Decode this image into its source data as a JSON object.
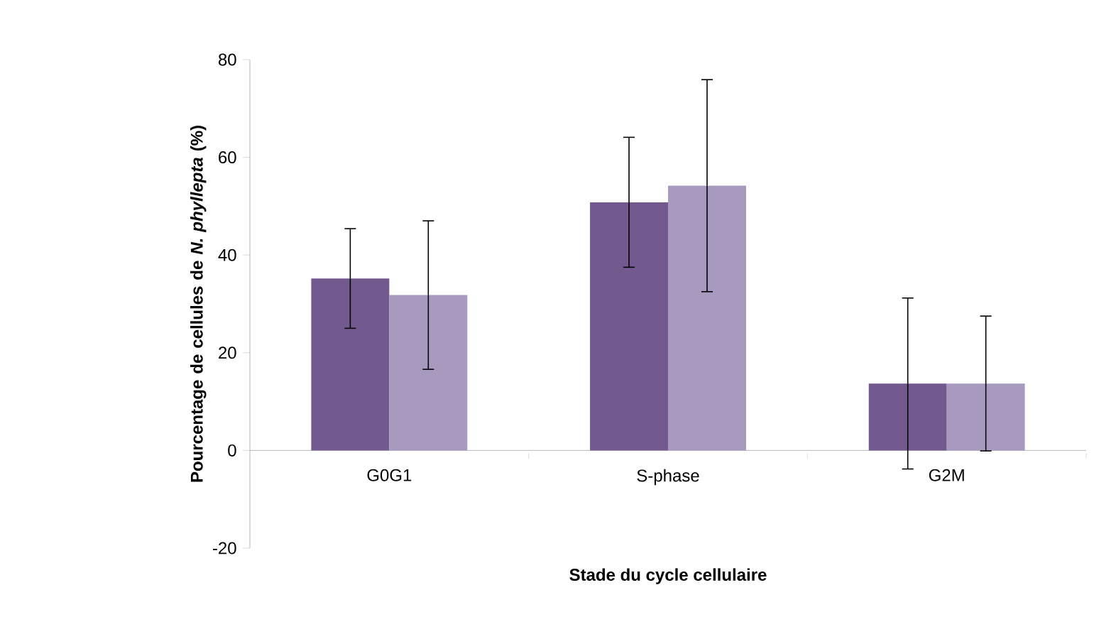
{
  "chart_data": {
    "type": "bar",
    "xlabel": "Stade du cycle cellulaire",
    "ylabel": "Pourcentage de cellules de *N. phyllepta* (%)",
    "categories": [
      "G0G1",
      "S-phase",
      "G2M"
    ],
    "series": [
      {
        "color": "#725a8f",
        "values": [
          35.2,
          50.8,
          13.7
        ],
        "errors": [
          10.2,
          13.3,
          17.5
        ]
      },
      {
        "color": "#a899bf",
        "values": [
          31.8,
          54.2,
          13.7
        ],
        "errors": [
          15.2,
          21.7,
          13.8
        ]
      }
    ],
    "ylim": [
      -20,
      80
    ],
    "yticks": [
      -20,
      0,
      20,
      40,
      60,
      80
    ],
    "grid": false
  }
}
